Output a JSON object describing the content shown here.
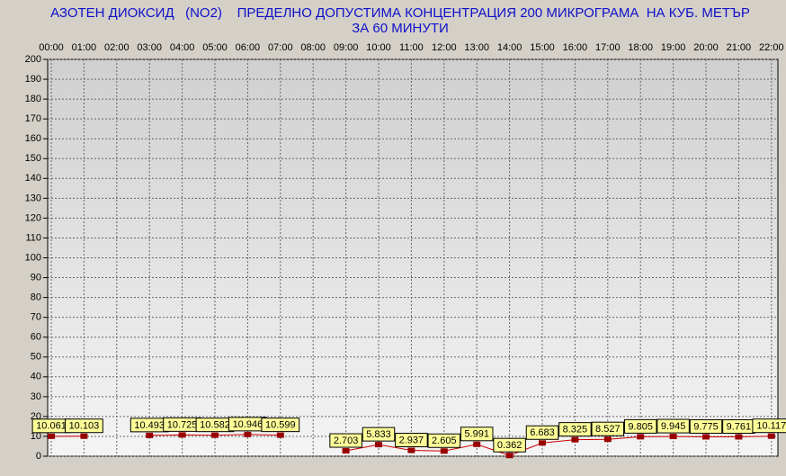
{
  "chart_data": {
    "type": "line",
    "title": "АЗОТЕН ДИОКСИД   (NO2)    ПРЕДЕЛНО ДОПУСТИМА КОНЦЕНТРАЦИЯ 200 МИКРОГРАМА  НА КУБ. МЕТЪР",
    "subtitle": "ЗА 60 МИНУТИ",
    "categories": [
      "00:00",
      "01:00",
      "02:00",
      "03:00",
      "04:00",
      "05:00",
      "06:00",
      "07:00",
      "08:00",
      "09:00",
      "10:00",
      "11:00",
      "12:00",
      "13:00",
      "14:00",
      "15:00",
      "16:00",
      "17:00",
      "18:00",
      "19:00",
      "20:00",
      "21:00",
      "22:00"
    ],
    "series": [
      {
        "name": "NO2",
        "color": "#cc0000",
        "values": [
          10.061,
          10.103,
          null,
          10.493,
          10.725,
          10.582,
          10.946,
          10.599,
          null,
          2.703,
          5.833,
          2.937,
          2.605,
          5.991,
          0.362,
          6.683,
          8.325,
          8.527,
          9.805,
          9.945,
          9.775,
          9.761,
          10.117
        ]
      }
    ],
    "ylim": [
      0,
      200
    ],
    "yticks": [
      0,
      10,
      20,
      30,
      40,
      50,
      60,
      70,
      80,
      90,
      100,
      110,
      120,
      130,
      140,
      150,
      160,
      170,
      180,
      190,
      200
    ],
    "grid": true
  }
}
